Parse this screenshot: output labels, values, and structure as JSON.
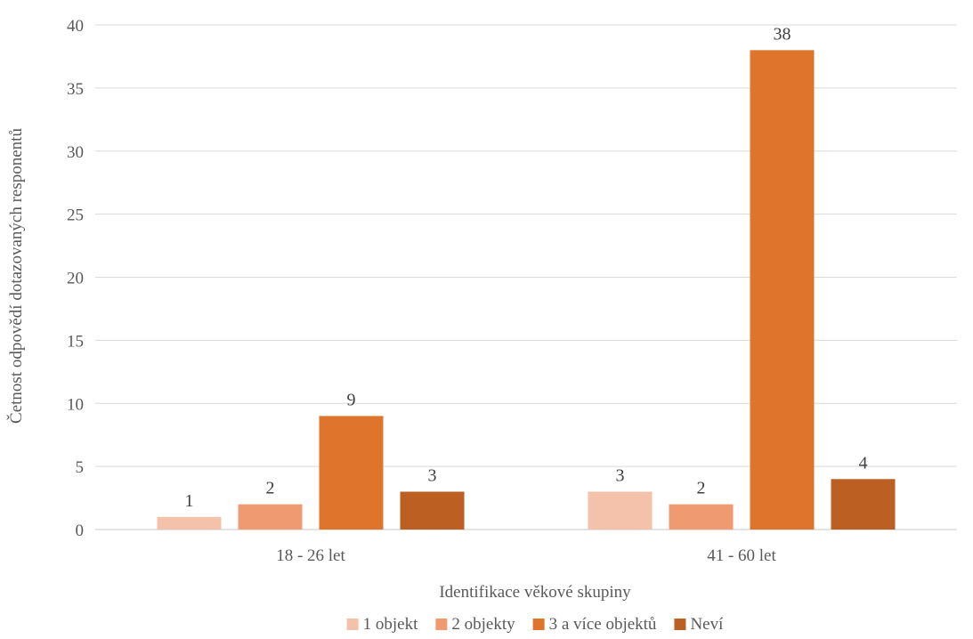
{
  "chart_data": {
    "type": "bar",
    "categories": [
      "18 - 26 let",
      "41 - 60 let"
    ],
    "series": [
      {
        "name": "1 objekt",
        "values": [
          1,
          3
        ],
        "color": "#F4C2AA"
      },
      {
        "name": "2 objekty",
        "values": [
          2,
          2
        ],
        "color": "#F09A72"
      },
      {
        "name": "3 a více objektů",
        "values": [
          9,
          38
        ],
        "color": "#DF752D"
      },
      {
        "name": "Neví",
        "values": [
          3,
          4
        ],
        "color": "#BB6022"
      }
    ],
    "xlabel": "Identifikace věkové skupiny",
    "ylabel": "Četnost odpovědí dotazovaných responentů",
    "ylim": [
      0,
      40
    ],
    "yticks": [
      0,
      5,
      10,
      15,
      20,
      25,
      30,
      35,
      40
    ],
    "grid": true,
    "legend_position": "bottom",
    "data_labels": true
  }
}
